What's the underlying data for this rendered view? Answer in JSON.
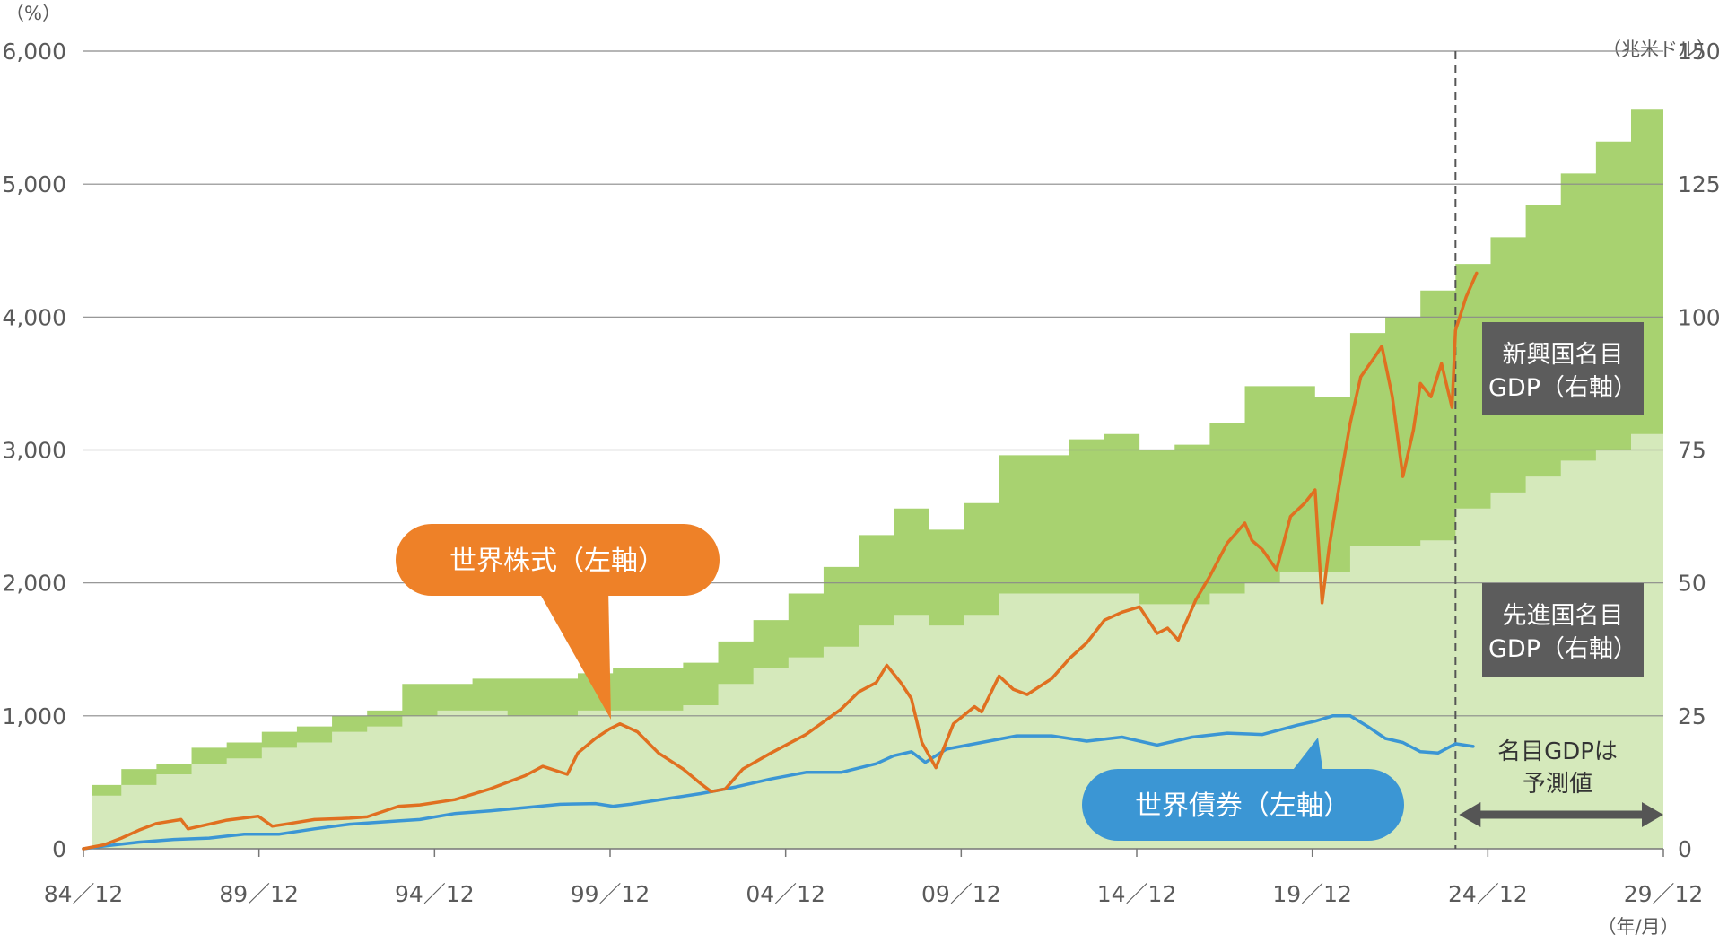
{
  "chart_data": {
    "type": "line",
    "left_axis": {
      "unit": "（%）",
      "ylim": [
        0,
        6000
      ],
      "ticks": [
        "0",
        "1,000",
        "2,000",
        "3,000",
        "4,000",
        "5,000",
        "6,000"
      ]
    },
    "right_axis": {
      "unit": "（兆米ドル）",
      "ylim": [
        0,
        150
      ],
      "ticks": [
        "0",
        "25",
        "50",
        "75",
        "100",
        "125",
        "150"
      ]
    },
    "x_axis": {
      "unit": "（年/月）",
      "xlim": [
        1984.92,
        2029.92
      ],
      "ticks": [
        "84／12",
        "89／12",
        "94／12",
        "99／12",
        "04／12",
        "09／12",
        "14／12",
        "19／12",
        "24／12",
        "29／12"
      ]
    },
    "grid": true,
    "forecast_start": 2024,
    "series": [
      {
        "name": "世界株式（左軸）",
        "axis": "left",
        "color": "#e07020",
        "x": [
          1984.92,
          1985.5,
          1986.0,
          1986.5,
          1987.0,
          1987.7,
          1987.9,
          1988.5,
          1989.0,
          1989.9,
          1990.3,
          1990.8,
          1991.5,
          1992.5,
          1993.0,
          1993.9,
          1994.5,
          1995.5,
          1996.5,
          1997.5,
          1998.0,
          1998.7,
          1999.0,
          1999.5,
          1999.9,
          2000.2,
          2000.7,
          2001.3,
          2002.0,
          2002.5,
          2002.8,
          2003.2,
          2003.7,
          2004.5,
          2005.5,
          2006.5,
          2007.0,
          2007.5,
          2007.8,
          2008.2,
          2008.5,
          2008.8,
          2009.2,
          2009.7,
          2010.3,
          2010.5,
          2011.0,
          2011.4,
          2011.8,
          2012.5,
          2013.0,
          2013.5,
          2014.0,
          2014.5,
          2015.0,
          2015.5,
          2015.8,
          2016.1,
          2016.6,
          2017.0,
          2017.5,
          2018.0,
          2018.2,
          2018.5,
          2018.9,
          2019.3,
          2019.7,
          2020.0,
          2020.2,
          2020.4,
          2020.7,
          2021.0,
          2021.3,
          2021.7,
          2021.9,
          2022.2,
          2022.5,
          2022.8,
          2023.0,
          2023.3,
          2023.6,
          2023.9,
          2024.0,
          2024.3,
          2024.6
        ],
        "values": [
          0,
          30,
          80,
          140,
          190,
          220,
          150,
          185,
          215,
          245,
          170,
          190,
          220,
          230,
          240,
          320,
          330,
          370,
          450,
          550,
          620,
          560,
          720,
          830,
          900,
          940,
          880,
          720,
          600,
          490,
          430,
          450,
          600,
          720,
          860,
          1050,
          1180,
          1250,
          1380,
          1250,
          1130,
          800,
          610,
          940,
          1070,
          1030,
          1300,
          1200,
          1160,
          1280,
          1430,
          1550,
          1720,
          1780,
          1820,
          1620,
          1660,
          1570,
          1870,
          2050,
          2300,
          2450,
          2320,
          2250,
          2100,
          2500,
          2600,
          2700,
          1850,
          2270,
          2750,
          3200,
          3550,
          3700,
          3780,
          3400,
          2800,
          3150,
          3500,
          3400,
          3650,
          3320,
          3900,
          4150,
          4330
        ]
      },
      {
        "name": "世界債券（左軸）",
        "axis": "left",
        "color": "#3b96d4",
        "x": [
          1984.92,
          1985.5,
          1986.5,
          1987.5,
          1988.5,
          1989.5,
          1990.5,
          1991.5,
          1992.5,
          1993.9,
          1994.5,
          1995.5,
          1996.5,
          1997.5,
          1998.5,
          1999.5,
          2000.0,
          2000.5,
          2001.5,
          2002.5,
          2003.5,
          2004.5,
          2005.5,
          2006.5,
          2007.5,
          2008.0,
          2008.5,
          2008.9,
          2009.5,
          2010.5,
          2011.5,
          2012.5,
          2013.5,
          2014.5,
          2015.5,
          2016.5,
          2017.5,
          2018.5,
          2019.5,
          2020.0,
          2020.5,
          2021.0,
          2021.5,
          2022.0,
          2022.5,
          2023.0,
          2023.5,
          2024.0,
          2024.5
        ],
        "values": [
          0,
          20,
          50,
          70,
          80,
          110,
          110,
          150,
          185,
          210,
          220,
          265,
          285,
          310,
          335,
          340,
          320,
          335,
          375,
          415,
          465,
          525,
          575,
          575,
          640,
          700,
          730,
          650,
          750,
          800,
          850,
          850,
          810,
          840,
          780,
          840,
          870,
          860,
          930,
          960,
          1000,
          1000,
          920,
          830,
          800,
          730,
          720,
          790,
          770
        ]
      }
    ],
    "areas": [
      {
        "name": "先進国名目GDP（右軸）",
        "axis": "right",
        "color": "#d5e9bb",
        "years": [
          1985,
          1986,
          1987,
          1988,
          1989,
          1990,
          1991,
          1992,
          1993,
          1994,
          1995,
          1996,
          1997,
          1998,
          1999,
          2000,
          2001,
          2002,
          2003,
          2004,
          2005,
          2006,
          2007,
          2008,
          2009,
          2010,
          2011,
          2012,
          2013,
          2014,
          2015,
          2016,
          2017,
          2018,
          2019,
          2020,
          2021,
          2022,
          2023,
          2024,
          2025,
          2026,
          2027,
          2028,
          2029
        ],
        "values": [
          10,
          12,
          14,
          16,
          17,
          19,
          20,
          22,
          23,
          25,
          26,
          26,
          25,
          25,
          26,
          26,
          26,
          27,
          31,
          34,
          36,
          38,
          42,
          44,
          42,
          44,
          48,
          48,
          48,
          48,
          46,
          46,
          48,
          50,
          52,
          52,
          57,
          57,
          58,
          64,
          67,
          70,
          73,
          75,
          78
        ]
      },
      {
        "name": "新興国名目GDP（右軸）",
        "axis": "right",
        "color": "#a8d270",
        "years": [
          1985,
          1986,
          1987,
          1988,
          1989,
          1990,
          1991,
          1992,
          1993,
          1994,
          1995,
          1996,
          1997,
          1998,
          1999,
          2000,
          2001,
          2002,
          2003,
          2004,
          2005,
          2006,
          2007,
          2008,
          2009,
          2010,
          2011,
          2012,
          2013,
          2014,
          2015,
          2016,
          2017,
          2018,
          2019,
          2020,
          2021,
          2022,
          2023,
          2024,
          2025,
          2026,
          2027,
          2028,
          2029
        ],
        "values": [
          12,
          15,
          16,
          19,
          20,
          22,
          23,
          25,
          26,
          31,
          31,
          32,
          32,
          32,
          33,
          34,
          34,
          35,
          39,
          43,
          48,
          53,
          59,
          64,
          60,
          65,
          74,
          74,
          77,
          78,
          75,
          76,
          80,
          87,
          87,
          85,
          97,
          100,
          105,
          110,
          115,
          121,
          127,
          133,
          139
        ]
      }
    ],
    "annotations": {
      "stocks_label": "世界株式（左軸）",
      "bonds_label": "世界債券（左軸）",
      "em_label": [
        "新興国名目",
        "GDP（右軸）"
      ],
      "dm_label": [
        "先進国名目",
        "GDP（右軸）"
      ],
      "forecast_note": [
        "名目GDPは",
        "予測値"
      ]
    }
  }
}
